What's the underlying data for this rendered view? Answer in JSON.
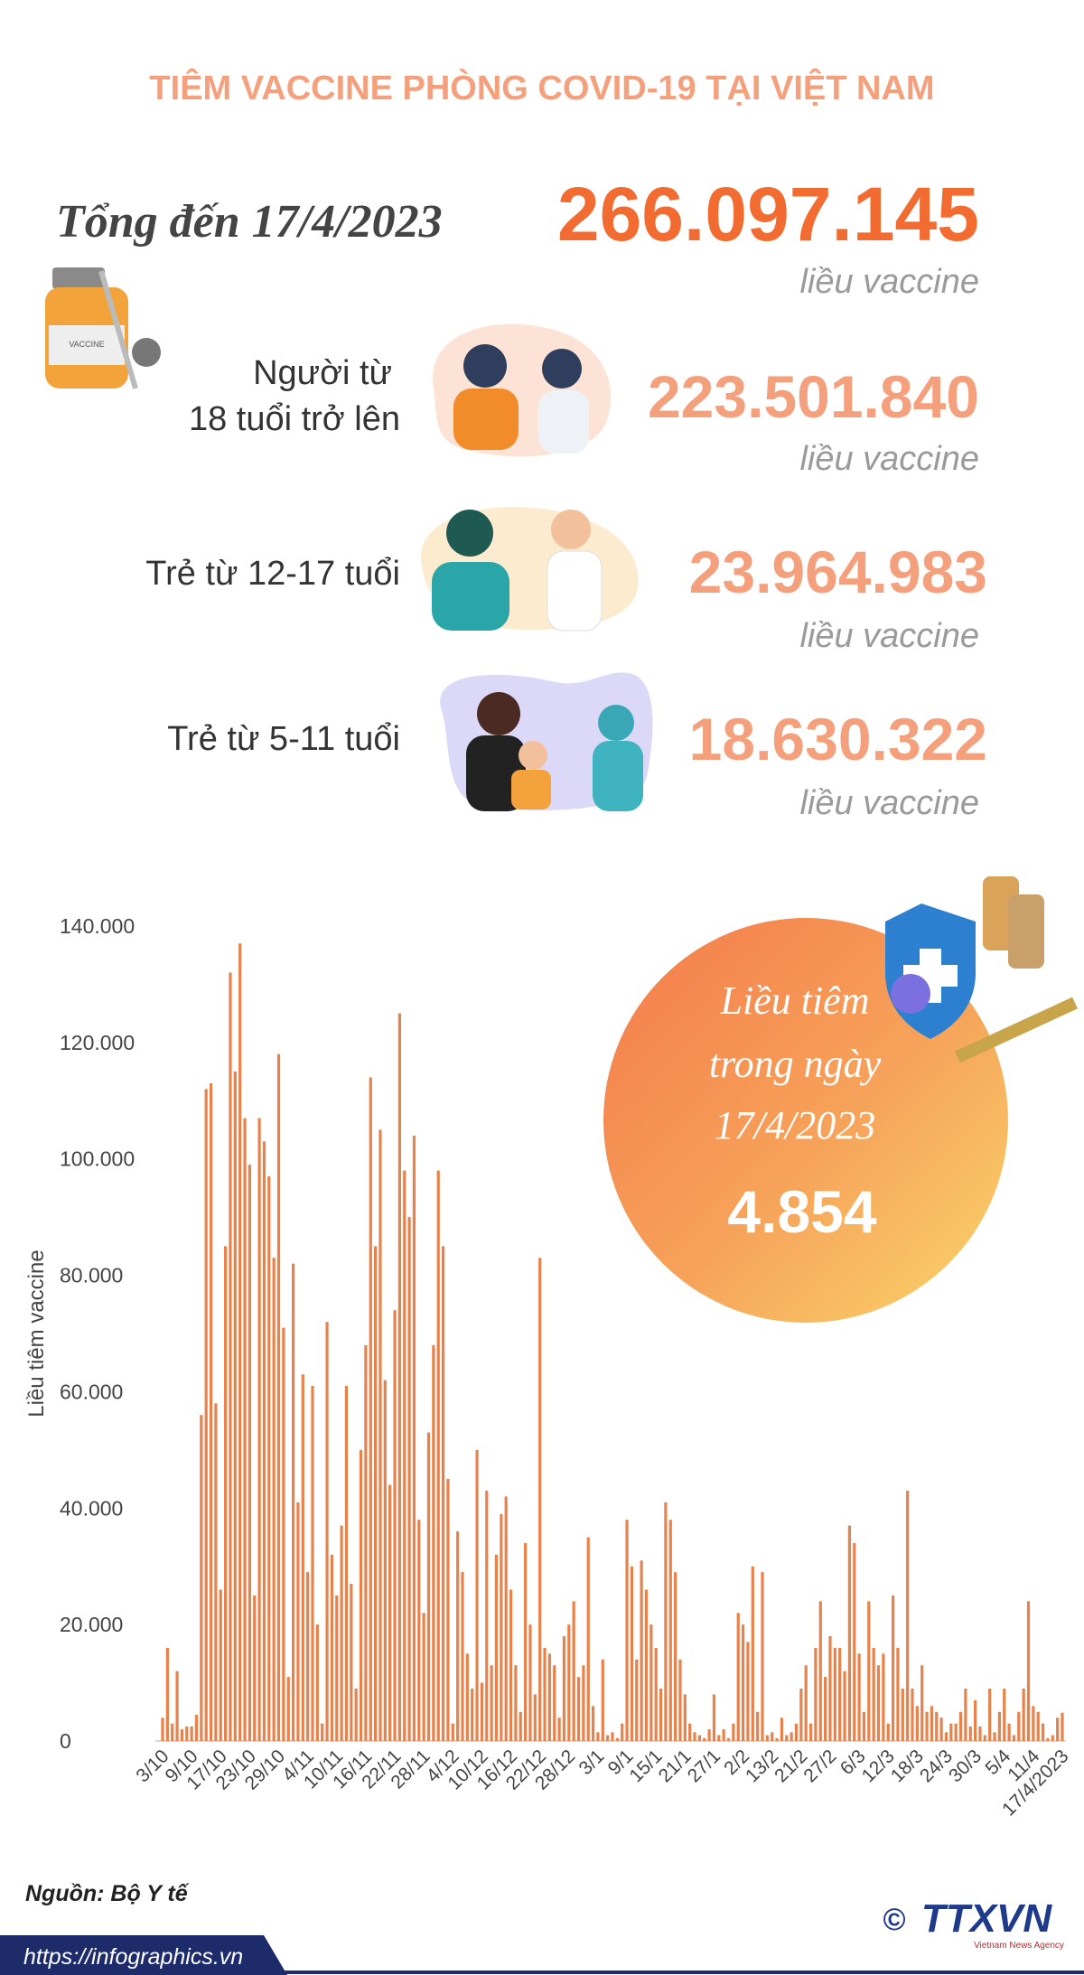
{
  "header": {
    "title": "TIÊM VACCINE PHÒNG COVID-19 TẠI VIỆT NAM"
  },
  "total": {
    "label": "Tổng đến 17/4/2023",
    "value": "266.097.145",
    "unit": "liều vaccine"
  },
  "groups": [
    {
      "label": [
        "Người từ",
        "18 tuổi trở lên"
      ],
      "value": "223.501.840",
      "unit": "liều vaccine"
    },
    {
      "label": [
        "Trẻ từ 12-17 tuổi"
      ],
      "value": "23.964.983",
      "unit": "liều vaccine"
    },
    {
      "label": [
        "Trẻ từ 5-11 tuổi"
      ],
      "value": "18.630.322",
      "unit": "liều vaccine"
    }
  ],
  "daily": {
    "title": [
      "Liều tiêm",
      "trong ngày",
      "17/4/2023"
    ],
    "value": "4.854"
  },
  "chart_data": {
    "type": "bar",
    "y_label": "Liều tiêm vaccine",
    "color": "#e8814a",
    "grid": false,
    "ylim": [
      0,
      140000
    ],
    "yticks": [
      0,
      {
        "value": 20000,
        "label": "20.000"
      },
      {
        "value": 40000,
        "label": "40.000"
      },
      {
        "value": 60000,
        "label": "60.000"
      },
      {
        "value": 80000,
        "label": "80.000"
      },
      {
        "value": 100000,
        "label": "100.000"
      },
      {
        "value": 120000,
        "label": "120.000"
      },
      {
        "value": 140000,
        "label": "140.000"
      }
    ],
    "categories": [
      "3/10",
      null,
      null,
      null,
      null,
      null,
      "9/10",
      null,
      null,
      null,
      null,
      null,
      "17/10",
      null,
      null,
      null,
      null,
      null,
      "23/10",
      null,
      null,
      null,
      null,
      null,
      "29/10",
      null,
      null,
      null,
      null,
      null,
      "4/11",
      null,
      null,
      null,
      null,
      null,
      "10/11",
      null,
      null,
      null,
      null,
      null,
      "16/11",
      null,
      null,
      null,
      null,
      null,
      "22/11",
      null,
      null,
      null,
      null,
      null,
      "28/11",
      null,
      null,
      null,
      null,
      null,
      "4/12",
      null,
      null,
      null,
      null,
      null,
      "10/12",
      null,
      null,
      null,
      null,
      null,
      "16/12",
      null,
      null,
      null,
      null,
      null,
      "22/12",
      null,
      null,
      null,
      null,
      null,
      "28/12",
      null,
      null,
      null,
      null,
      null,
      "3/1",
      null,
      null,
      null,
      null,
      null,
      "9/1",
      null,
      null,
      null,
      null,
      null,
      "15/1",
      null,
      null,
      null,
      null,
      null,
      "21/1",
      null,
      null,
      null,
      null,
      null,
      "27/1",
      null,
      null,
      null,
      null,
      null,
      "2/2",
      null,
      null,
      null,
      null,
      null,
      "13/2",
      null,
      null,
      null,
      null,
      null,
      "21/2",
      null,
      null,
      null,
      null,
      null,
      "27/2",
      null,
      null,
      null,
      null,
      null,
      "6/3",
      null,
      null,
      null,
      null,
      null,
      "12/3",
      null,
      null,
      null,
      null,
      null,
      "18/3",
      null,
      null,
      null,
      null,
      null,
      "24/3",
      null,
      null,
      null,
      null,
      null,
      "30/3",
      null,
      null,
      null,
      null,
      null,
      "5/4",
      null,
      null,
      null,
      null,
      null,
      "11/4",
      null,
      null,
      null,
      null,
      null,
      "17/4/2023"
    ],
    "values": [
      4000,
      16000,
      3000,
      12000,
      2000,
      2500,
      2500,
      4500,
      56000,
      112000,
      113000,
      58000,
      26000,
      85000,
      132000,
      115000,
      137000,
      107000,
      99000,
      25000,
      107000,
      103000,
      97000,
      83000,
      118000,
      71000,
      11000,
      82000,
      41000,
      63000,
      29000,
      61000,
      20000,
      3000,
      72000,
      32000,
      25000,
      37000,
      61000,
      27000,
      9000,
      50000,
      68000,
      114000,
      85000,
      105000,
      62000,
      44000,
      74000,
      125000,
      98000,
      90000,
      104000,
      38000,
      22000,
      53000,
      68000,
      98000,
      85000,
      45000,
      3000,
      36000,
      29000,
      15000,
      9000,
      50000,
      10000,
      43000,
      13000,
      32000,
      39000,
      42000,
      26000,
      13000,
      5000,
      34000,
      20000,
      8000,
      83000,
      16000,
      15000,
      13000,
      4000,
      18000,
      20000,
      24000,
      11000,
      13000,
      35000,
      6000,
      1500,
      14000,
      1000,
      1500,
      500,
      3000,
      38000,
      30000,
      14000,
      31000,
      26000,
      20000,
      16000,
      9000,
      41000,
      38000,
      29000,
      14000,
      8000,
      3000,
      1500,
      1000,
      500,
      2000,
      8000,
      1000,
      2000,
      500,
      3000,
      22000,
      20000,
      17000,
      30000,
      5000,
      29000,
      1000,
      1500,
      500,
      4000,
      1000,
      1500,
      3000,
      9000,
      13000,
      3000,
      16000,
      24000,
      11000,
      18000,
      16000,
      16000,
      12000,
      37000,
      34000,
      15000,
      5000,
      24000,
      16000,
      13000,
      15000,
      3000,
      25000,
      16000,
      9000,
      43000,
      9000,
      6000,
      13000,
      5000,
      6000,
      5000,
      4000,
      1500,
      3000,
      3000,
      5000,
      9000,
      2500,
      7000,
      2500,
      1000,
      9000,
      1500,
      5000,
      9000,
      3000,
      1000,
      5000,
      9000,
      24000,
      6000,
      5000,
      3000,
      500,
      1000,
      4000,
      4854
    ]
  },
  "footer": {
    "source": "Nguồn: Bộ Y tế",
    "url": "https://infographics.vn",
    "copyright": "©",
    "logo": "TTXVN",
    "agency": "Vietnam News Agency"
  }
}
